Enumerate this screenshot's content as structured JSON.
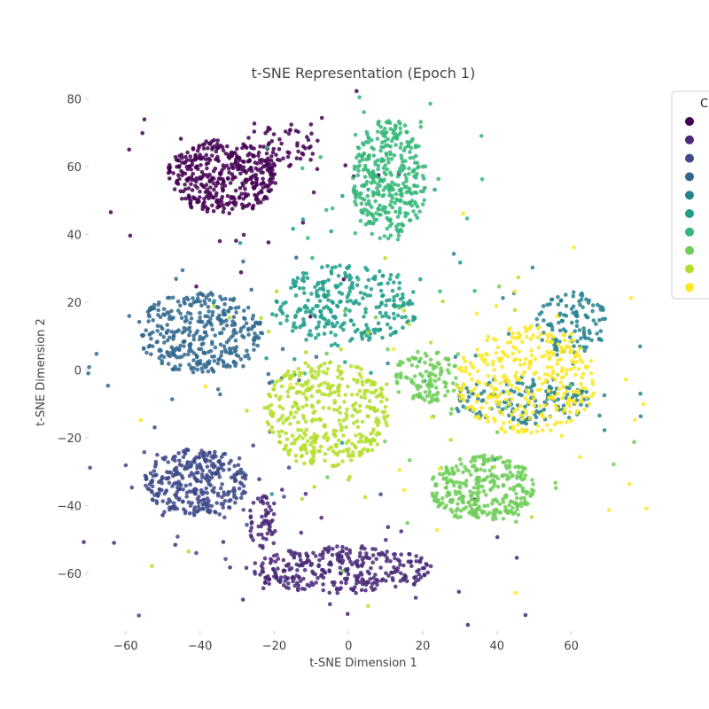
{
  "chart_data": {
    "type": "scatter",
    "title": "t-SNE Representation (Epoch 1)",
    "xlabel": "t-SNE Dimension 1",
    "ylabel": "t-SNE Dimension 2",
    "xlim": [
      -70,
      78
    ],
    "ylim": [
      -77,
      83
    ],
    "xticks": [
      -60,
      -40,
      -20,
      0,
      20,
      40,
      60
    ],
    "yticks": [
      -60,
      -40,
      -20,
      0,
      20,
      40,
      60,
      80
    ],
    "xtick_labels": [
      "−60",
      "−40",
      "−20",
      "0",
      "20",
      "40",
      "60"
    ],
    "ytick_labels": [
      "−60",
      "−40",
      "−20",
      "0",
      "20",
      "40",
      "60",
      "80"
    ],
    "grid": false,
    "legend": {
      "title": "C",
      "placement": "top-right",
      "colors": [
        "#440154",
        "#482878",
        "#3e4989",
        "#31688e",
        "#26828e",
        "#1f9e89",
        "#35b779",
        "#6ece58",
        "#b5de2b",
        "#fde725"
      ]
    },
    "series": [
      {
        "color": "#440154",
        "clusters": [
          {
            "cx": -34,
            "cy": 57,
            "rx": 15,
            "ry": 11,
            "n": 420
          },
          {
            "cx": -18,
            "cy": 66,
            "rx": 10,
            "ry": 7,
            "n": 70
          }
        ]
      },
      {
        "color": "#482878",
        "clusters": [
          {
            "cx": -2,
            "cy": -59,
            "rx": 25,
            "ry": 7,
            "n": 340
          },
          {
            "cx": -23,
            "cy": -45,
            "rx": 4,
            "ry": 9,
            "n": 60
          }
        ]
      },
      {
        "color": "#3e4989",
        "clusters": [
          {
            "cx": -41,
            "cy": -33,
            "rx": 14,
            "ry": 10,
            "n": 340
          }
        ]
      },
      {
        "color": "#31688e",
        "clusters": [
          {
            "cx": -40,
            "cy": 11,
            "rx": 17,
            "ry": 12,
            "n": 380
          }
        ]
      },
      {
        "color": "#26828e",
        "clusters": [
          {
            "cx": 47,
            "cy": -9,
            "rx": 20,
            "ry": 7,
            "n": 160
          },
          {
            "cx": 60,
            "cy": 14,
            "rx": 10,
            "ry": 9,
            "n": 120
          }
        ]
      },
      {
        "color": "#1f9e89",
        "clusters": [
          {
            "cx": -1,
            "cy": 19,
            "rx": 20,
            "ry": 12,
            "n": 300
          }
        ]
      },
      {
        "color": "#35b779",
        "clusters": [
          {
            "cx": 11,
            "cy": 56,
            "rx": 10,
            "ry": 18,
            "n": 380
          }
        ]
      },
      {
        "color": "#6ece58",
        "clusters": [
          {
            "cx": 36,
            "cy": -35,
            "rx": 14,
            "ry": 10,
            "n": 320
          },
          {
            "cx": 21,
            "cy": -2,
            "rx": 9,
            "ry": 8,
            "n": 120
          }
        ]
      },
      {
        "color": "#b5de2b",
        "clusters": [
          {
            "cx": -6,
            "cy": -13,
            "rx": 17,
            "ry": 16,
            "n": 420
          }
        ]
      },
      {
        "color": "#fde725",
        "clusters": [
          {
            "cx": 48,
            "cy": -3,
            "rx": 19,
            "ry": 16,
            "n": 360
          }
        ]
      }
    ]
  }
}
